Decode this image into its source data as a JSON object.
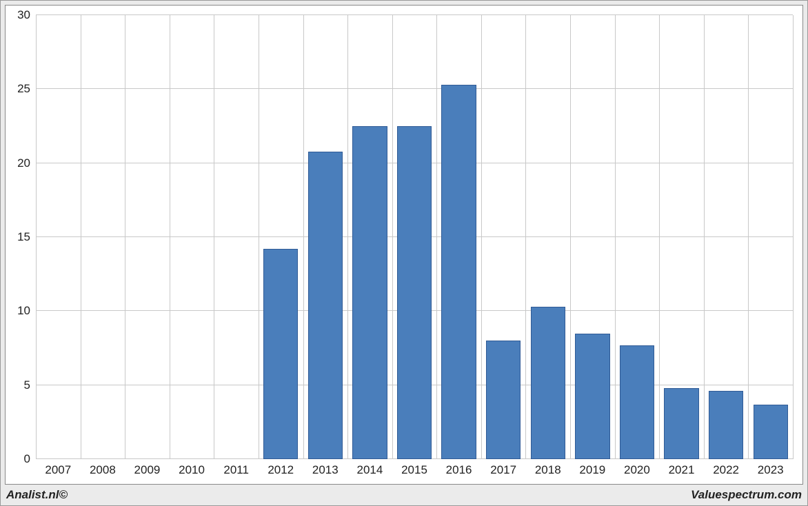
{
  "chart": {
    "type": "bar",
    "background_color": "#ffffff",
    "frame_background": "#ebebeb",
    "grid_color": "#c8c8c8",
    "axis_color": "#888888",
    "bar_fill": "#4a7ebb",
    "bar_border": "#2f5a95",
    "bar_width_ratio": 0.78,
    "ylim": [
      0,
      30
    ],
    "ytick_step": 5,
    "y_ticks": [
      0,
      5,
      10,
      15,
      20,
      25,
      30
    ],
    "categories": [
      "2007",
      "2008",
      "2009",
      "2010",
      "2011",
      "2012",
      "2013",
      "2014",
      "2015",
      "2016",
      "2017",
      "2018",
      "2019",
      "2020",
      "2021",
      "2022",
      "2023"
    ],
    "values": [
      0,
      0,
      0,
      0,
      0,
      14.2,
      20.8,
      22.5,
      22.5,
      25.3,
      8.0,
      10.3,
      8.5,
      7.7,
      4.8,
      4.6,
      3.7
    ],
    "tick_fontsize": 17,
    "tick_color": "#222222"
  },
  "footer": {
    "left": "Analist.nl©",
    "right": "Valuespectrum.com"
  }
}
